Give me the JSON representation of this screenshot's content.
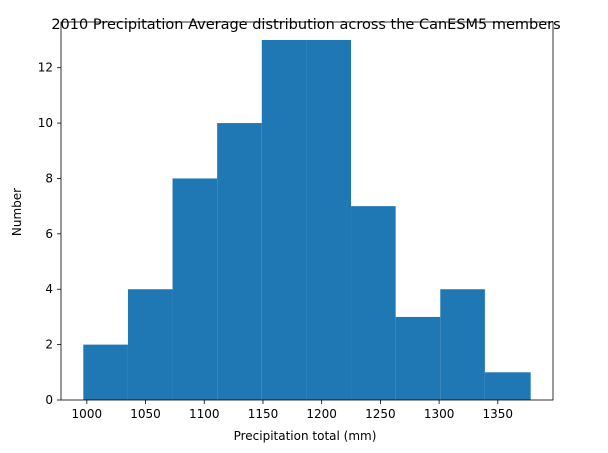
{
  "chart_data": {
    "type": "bar",
    "title": "2010 Precipitation Average distribution across the CanESM5 members",
    "xlabel": "Precipitation total (mm)",
    "ylabel": "Number",
    "bin_edges": [
      997,
      1035,
      1073,
      1111,
      1149,
      1187,
      1225,
      1263,
      1301,
      1339,
      1378
    ],
    "values": [
      2,
      4,
      8,
      10,
      13,
      13,
      7,
      3,
      4,
      1
    ],
    "xlim": [
      978,
      1397
    ],
    "ylim": [
      0,
      13.65
    ],
    "xticks": [
      1000,
      1050,
      1100,
      1150,
      1200,
      1250,
      1300,
      1350
    ],
    "yticks": [
      0,
      2,
      4,
      6,
      8,
      10,
      12
    ],
    "grid": false,
    "bar_color": "#1f77b4"
  }
}
